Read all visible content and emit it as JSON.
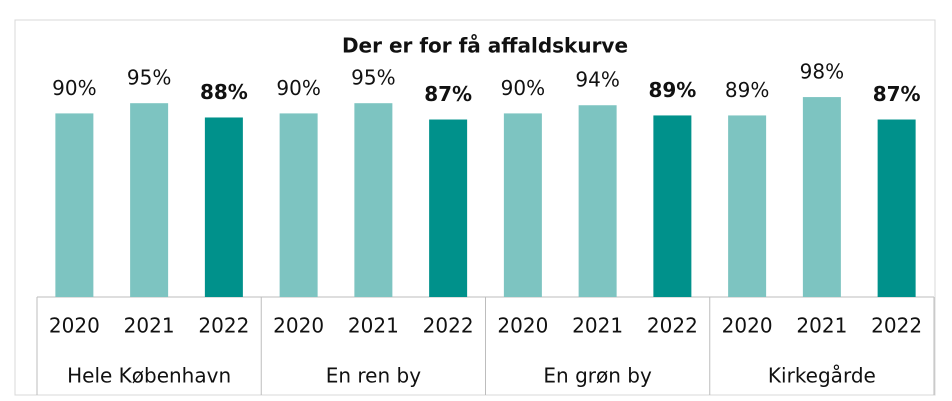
{
  "chart_data": {
    "type": "bar",
    "title": "Der er for få affaldskurve",
    "groups": [
      "Hele København",
      "En ren by",
      "En grøn by",
      "Kirkegårde"
    ],
    "categories": [
      "2020",
      "2021",
      "2022",
      "2020",
      "2021",
      "2022",
      "2020",
      "2021",
      "2022",
      "2020",
      "2021",
      "2022"
    ],
    "values": [
      90,
      95,
      88,
      90,
      95,
      87,
      90,
      94,
      89,
      89,
      98,
      87
    ],
    "value_labels": [
      "90%",
      "95%",
      "88%",
      "90%",
      "95%",
      "87%",
      "90%",
      "94%",
      "89%",
      "89%",
      "98%",
      "87%"
    ],
    "colors": [
      "#7dc4c1",
      "#7dc4c1",
      "#00918b",
      "#7dc4c1",
      "#7dc4c1",
      "#00918b",
      "#7dc4c1",
      "#7dc4c1",
      "#00918b",
      "#7dc4c1",
      "#7dc4c1",
      "#00918b"
    ],
    "bold_labels": [
      false,
      false,
      true,
      false,
      false,
      true,
      false,
      false,
      true,
      false,
      false,
      true
    ],
    "ylim": [
      0,
      100
    ]
  }
}
